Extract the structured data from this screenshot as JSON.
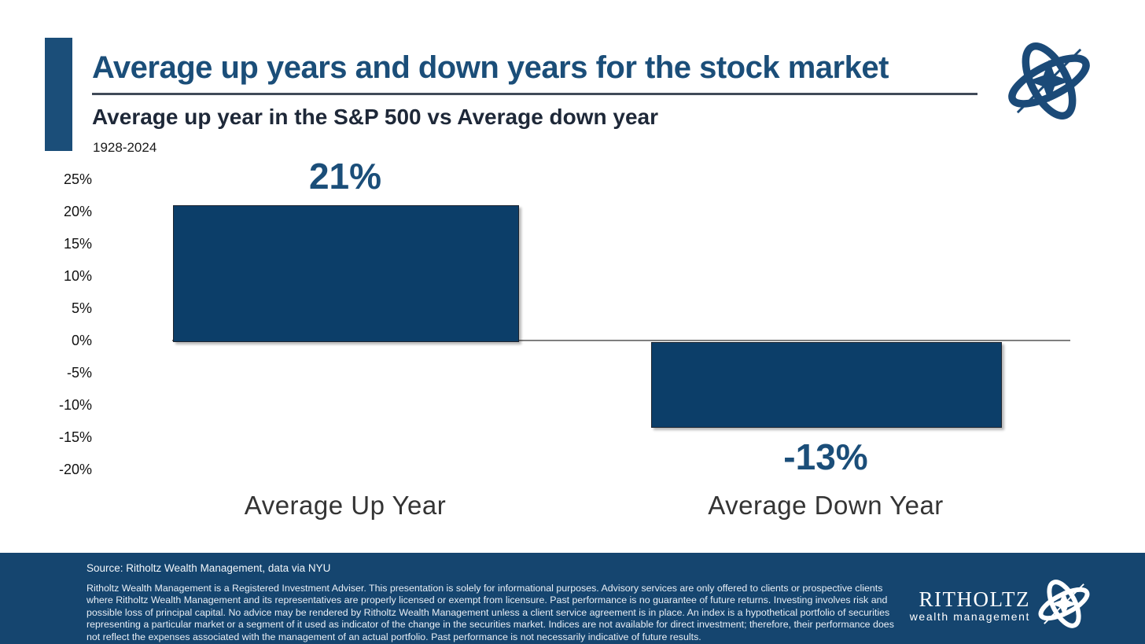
{
  "slide": {
    "title": "Average up years and down years for the stock market",
    "subtitle": "Average up year in the S&P 500 vs Average down year",
    "period": "1928-2024"
  },
  "chart_data": {
    "type": "bar",
    "categories": [
      "Average Up Year",
      "Average Down Year"
    ],
    "values": [
      21,
      -13
    ],
    "value_labels": [
      "21%",
      "-13%"
    ],
    "ylim": [
      -20,
      25
    ],
    "ytick_step": 5,
    "ytick_labels": [
      "25%",
      "20%",
      "15%",
      "10%",
      "5%",
      "0%",
      "-5%",
      "-10%",
      "-15%",
      "-20%"
    ],
    "grid": false,
    "legend": false,
    "bar_color": "#0c3e69",
    "title": "Average up years and down years for the stock market",
    "xlabel": "",
    "ylabel": ""
  },
  "footer": {
    "source": "Source: Ritholtz Wealth Management, data via NYU",
    "disclaimer": "Ritholtz Wealth Management is a Registered Investment Adviser. This presentation is solely for informational purposes. Advisory services are only offered to clients or prospective clients where Ritholtz Wealth Management and its representatives are properly licensed or exempt from licensure. Past performance is no guarantee of future returns. Investing involves risk and possible loss of principal capital. No advice may be rendered by Ritholtz Wealth Management unless a client service agreement is in place. An index is a hypothetical portfolio of securities representing a particular market or a segment of it used as indicator of the change in the securities market. Indices are not available for direct investment; therefore, their performance does not reflect the expenses associated with the management of an actual portfolio. Past performance is not necessarily indicative of future results.",
    "brand_name": "RITHOLTZ",
    "brand_tagline": "wealth management"
  },
  "icons": {
    "top_logo": "ritholtz-gyroscope-logo",
    "footer_logo": "ritholtz-gyroscope-logo"
  },
  "colors": {
    "navy_title": "#1b4e79",
    "bar_navy": "#0c3e69",
    "footer_bg": "#15456f",
    "axis_line": "#7f7f7f"
  }
}
